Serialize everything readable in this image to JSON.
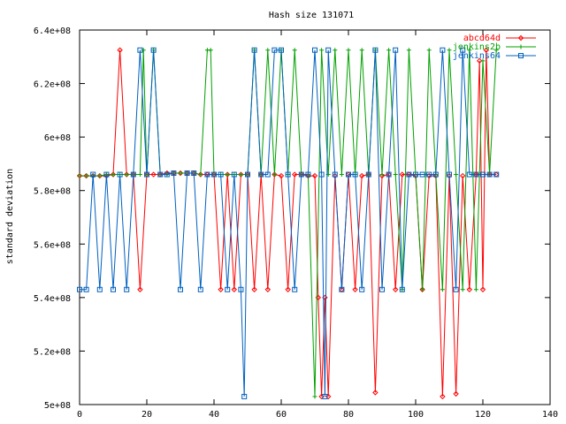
{
  "chart_data": {
    "type": "line",
    "title": "Hash size 131071",
    "xlabel": "",
    "ylabel": "standard deviation",
    "xlim": [
      0,
      140
    ],
    "ylim": [
      500000000,
      640000000
    ],
    "x_ticks": [
      "0",
      "20",
      "40",
      "60",
      "80",
      "100",
      "120",
      "140"
    ],
    "y_ticks": [
      "5e+08",
      "5.2e+08",
      "5.4e+08",
      "5.6e+08",
      "5.8e+08",
      "6e+08",
      "6.2e+08",
      "6.4e+08"
    ],
    "grid": false,
    "legend_position": "top-right",
    "series": [
      {
        "name": "abcd64d",
        "color": "#ff0000",
        "marker": "diamond",
        "x": [
          0,
          2,
          4,
          6,
          8,
          10,
          12,
          14,
          16,
          18,
          20,
          22,
          24,
          26,
          28,
          30,
          32,
          34,
          36,
          38,
          40,
          42,
          44,
          46,
          48,
          50,
          52,
          54,
          56,
          58,
          60,
          62,
          64,
          66,
          68,
          70,
          71,
          72,
          73,
          74,
          76,
          78,
          80,
          82,
          84,
          86,
          88,
          90,
          92,
          94,
          96,
          98,
          100,
          102,
          104,
          106,
          108,
          110,
          112,
          114,
          116,
          118,
          119,
          120,
          121,
          122,
          124
        ],
        "y": [
          585500000,
          585500000,
          585500000,
          585500000,
          585500000,
          586000000,
          632500000,
          586000000,
          586000000,
          543000000,
          586000000,
          586000000,
          586000000,
          586500000,
          586500000,
          586500000,
          586500000,
          586500000,
          586000000,
          586000000,
          586000000,
          543000000,
          586000000,
          543000000,
          586000000,
          586000000,
          543000000,
          586000000,
          543000000,
          586000000,
          585500000,
          543000000,
          586000000,
          586000000,
          585500000,
          585500000,
          540000000,
          503000000,
          540000000,
          503000000,
          585500000,
          543000000,
          586000000,
          543000000,
          585500000,
          586000000,
          504500000,
          585500000,
          586000000,
          543000000,
          586000000,
          586000000,
          585500000,
          543000000,
          585500000,
          585500000,
          503000000,
          585500000,
          504000000,
          585500000,
          543000000,
          586000000,
          628500000,
          543000000,
          632500000,
          586000000,
          586000000
        ]
      },
      {
        "name": "jenkins2b",
        "color": "#00a000",
        "marker": "plus",
        "x": [
          0,
          2,
          4,
          6,
          8,
          10,
          12,
          14,
          16,
          18,
          19,
          20,
          22,
          24,
          26,
          28,
          30,
          32,
          34,
          36,
          38,
          39,
          40,
          42,
          44,
          46,
          48,
          50,
          52,
          54,
          56,
          58,
          60,
          62,
          64,
          66,
          68,
          70,
          72,
          74,
          76,
          78,
          80,
          82,
          84,
          86,
          88,
          90,
          92,
          94,
          96,
          98,
          100,
          102,
          104,
          106,
          108,
          110,
          112,
          114,
          116,
          118,
          120,
          122,
          124
        ],
        "y": [
          585500000,
          585500000,
          585500000,
          585500000,
          586000000,
          586000000,
          586000000,
          586000000,
          586000000,
          586000000,
          632500000,
          586000000,
          632500000,
          586000000,
          586000000,
          586500000,
          586500000,
          586500000,
          586500000,
          586000000,
          632500000,
          632500000,
          586000000,
          586000000,
          586000000,
          586000000,
          586000000,
          586000000,
          632500000,
          586000000,
          632500000,
          586000000,
          632500000,
          586000000,
          632500000,
          586000000,
          586000000,
          503000000,
          632500000,
          586000000,
          632500000,
          586000000,
          632500000,
          586000000,
          632500000,
          586000000,
          632500000,
          586000000,
          632500000,
          586000000,
          543000000,
          632500000,
          586000000,
          543000000,
          632500000,
          586000000,
          543000000,
          632500000,
          586000000,
          543000000,
          632500000,
          543000000,
          628500000,
          586000000,
          632500000
        ]
      },
      {
        "name": "jenkins64",
        "color": "#0060c0",
        "marker": "square",
        "x": [
          0,
          2,
          4,
          6,
          8,
          10,
          12,
          14,
          16,
          18,
          20,
          22,
          24,
          26,
          28,
          30,
          32,
          34,
          36,
          38,
          40,
          42,
          44,
          46,
          48,
          49,
          50,
          52,
          54,
          56,
          58,
          60,
          62,
          64,
          66,
          68,
          70,
          72,
          73,
          74,
          76,
          78,
          80,
          82,
          84,
          86,
          88,
          90,
          92,
          94,
          96,
          98,
          100,
          102,
          104,
          106,
          108,
          110,
          112,
          114,
          116,
          118,
          120,
          122,
          124
        ],
        "y": [
          543000000,
          543000000,
          586000000,
          543000000,
          586000000,
          543000000,
          586000000,
          543000000,
          586000000,
          632500000,
          586000000,
          632500000,
          586000000,
          586000000,
          586500000,
          543000000,
          586500000,
          586500000,
          543000000,
          586000000,
          586000000,
          586000000,
          543000000,
          586000000,
          543000000,
          503000000,
          586000000,
          632500000,
          586000000,
          586000000,
          632500000,
          632500000,
          586000000,
          543000000,
          586000000,
          586000000,
          632500000,
          586000000,
          503000000,
          632500000,
          586000000,
          543000000,
          586000000,
          586000000,
          543000000,
          586000000,
          632500000,
          543000000,
          586000000,
          632500000,
          543000000,
          586000000,
          586000000,
          586000000,
          586000000,
          586000000,
          632500000,
          586000000,
          543000000,
          632500000,
          586000000,
          586000000,
          586000000,
          586000000,
          586000000
        ]
      }
    ]
  }
}
